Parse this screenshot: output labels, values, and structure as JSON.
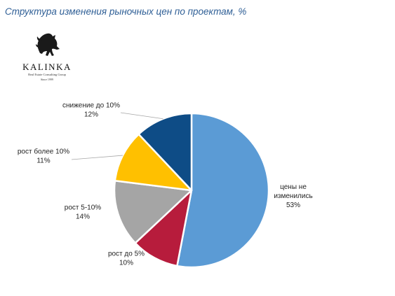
{
  "title": "Структура изменения рыночных цен по проектам, %",
  "logo": {
    "name": "KALINKA",
    "tagline": "Real Estate Consulting Group",
    "since": "Since 1999"
  },
  "chart_data": {
    "type": "pie",
    "title": "Структура изменения рыночных цен по проектам, %",
    "slices": [
      {
        "name": "цены не изменились",
        "label_lines": [
          "цены не",
          "изменились"
        ],
        "pct": "53%",
        "value": 53,
        "color": "#5b9bd5"
      },
      {
        "name": "рост до 5%",
        "label_lines": [
          "рост до 5%"
        ],
        "pct": "10%",
        "value": 10,
        "color": "#b71c3c"
      },
      {
        "name": "рост 5-10%",
        "label_lines": [
          "рост 5-10%"
        ],
        "pct": "14%",
        "value": 14,
        "color": "#a5a5a5"
      },
      {
        "name": "рост более 10%",
        "label_lines": [
          "рост более 10%"
        ],
        "pct": "11%",
        "value": 11,
        "color": "#ffc000"
      },
      {
        "name": "снижение до 10%",
        "label_lines": [
          "снижение до 10%"
        ],
        "pct": "12%",
        "value": 12,
        "color": "#0e4c86"
      }
    ]
  }
}
